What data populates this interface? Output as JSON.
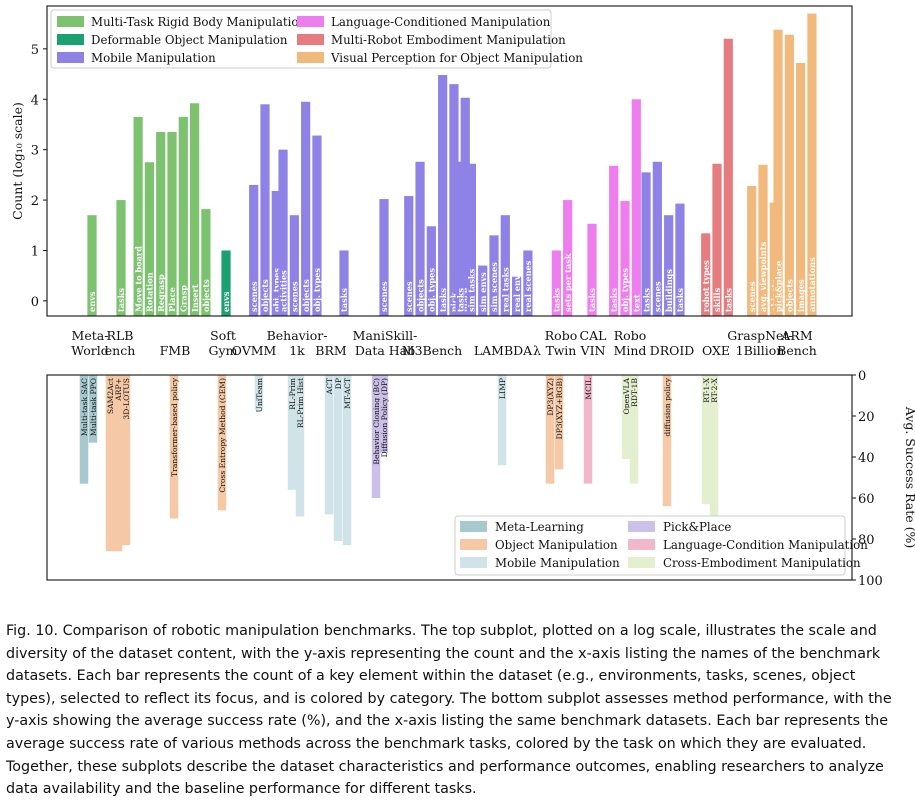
{
  "chart_data": [
    {
      "type": "bar",
      "ylabel": "Count (log₁₀ scale)",
      "ylim": [
        -0.3,
        5.85
      ],
      "yticks": [
        0,
        1,
        2,
        3,
        4,
        5
      ],
      "grid": false,
      "legend": {
        "placement": "top-center",
        "entries": [
          {
            "name": "Multi-Task Rigid Body Manipulation",
            "color": "#7cc26f"
          },
          {
            "name": "Language-Conditioned Manipulation",
            "color": "#ee7ded"
          },
          {
            "name": "Deformable Object Manipulation",
            "color": "#1aa16f"
          },
          {
            "name": "Multi-Robot Embodiment Manipulation",
            "color": "#e57d80"
          },
          {
            "name": "Mobile Manipulation",
            "color": "#8e82e6"
          },
          {
            "name": "Visual Perception for Object Manipulation",
            "color": "#f2b97c"
          }
        ]
      },
      "benchmarks": [
        {
          "name": "Meta-\nWorld",
          "color": "#7cc26f",
          "bars": [
            {
              "label": "envs",
              "value": 1.7
            }
          ]
        },
        {
          "name": "RLB\nench",
          "color": "#7cc26f",
          "bars": [
            {
              "label": "tasks",
              "value": 2.0
            }
          ]
        },
        {
          "name": "FMB",
          "color": "#7cc26f",
          "bars": [
            {
              "label": "Move to board",
              "value": 3.65
            },
            {
              "label": "Rotation",
              "value": 2.75
            },
            {
              "label": "Regrasp",
              "value": 3.35
            },
            {
              "label": "Place",
              "value": 3.35
            },
            {
              "label": "Grasp",
              "value": 3.65
            },
            {
              "label": "Insert",
              "value": 3.92
            },
            {
              "label": "objects",
              "value": 1.82
            }
          ]
        },
        {
          "name": "Soft\nGym",
          "color": "#1aa16f",
          "bars": [
            {
              "label": "envs",
              "value": 1.0
            }
          ]
        },
        {
          "name": "OVMM",
          "color": "#8e82e6",
          "bars": [
            {
              "label": "scenes",
              "value": 2.3
            },
            {
              "label": "objects",
              "value": 3.9
            },
            {
              "label": "obj. types",
              "value": 2.18
            }
          ]
        },
        {
          "name": "Behavior-\n1k",
          "color": "#8e82e6",
          "bars": [
            {
              "label": "activities",
              "value": 3.0
            },
            {
              "label": "scenes",
              "value": 1.7
            },
            {
              "label": "objects",
              "value": 3.95
            },
            {
              "label": "obj. types",
              "value": 3.28
            }
          ]
        },
        {
          "name": "BRM",
          "color": "#8e82e6",
          "bars": [
            {
              "label": "tasks",
              "value": 1.0
            }
          ]
        },
        {
          "name": "ManiSkill-\nData Hab",
          "color": "#8e82e6",
          "bars": [
            {
              "label": "scenes",
              "value": 2.02
            }
          ]
        },
        {
          "name": "M3Bench",
          "color": "#8e82e6",
          "bars": [
            {
              "label": "scenes",
              "value": 2.08
            },
            {
              "label": "objects",
              "value": 2.76
            },
            {
              "label": "obj. types",
              "value": 1.48
            },
            {
              "label": "tasks",
              "value": 4.48
            },
            {
              "label": "pick",
              "value": 4.3
            },
            {
              "label": "place",
              "value": 4.03
            }
          ]
        },
        {
          "name": "LAMBDA",
          "color": "#8e82e6",
          "bars": [
            {
              "label": "tasks",
              "value": 2.76
            },
            {
              "label": "sim tasks",
              "value": 2.72
            },
            {
              "label": "sim envs",
              "value": 0.7
            },
            {
              "label": "sim scenes",
              "value": 1.3
            },
            {
              "label": "real tasks",
              "value": 1.7
            },
            {
              "label": "real envs",
              "value": 0.48
            },
            {
              "label": "real scenes",
              "value": 1.0
            }
          ]
        },
        {
          "name": "λ",
          "color": "#8e82e6",
          "bars": []
        },
        {
          "name": "Robo\nTwin",
          "color": "#ee7ded",
          "bars": [
            {
              "label": "tasks",
              "value": 1.0
            },
            {
              "label": "sets per task",
              "value": 2.0
            }
          ]
        },
        {
          "name": "CAL\nVIN",
          "color": "#ee7ded",
          "bars": [
            {
              "label": "tasks",
              "value": 1.53
            }
          ]
        },
        {
          "name": "Robo\nMind",
          "color": "#ee7ded",
          "bars": [
            {
              "label": "tasks",
              "value": 2.68
            },
            {
              "label": "obj. types",
              "value": 1.98
            },
            {
              "label": "text",
              "value": 4.0
            }
          ]
        },
        {
          "name": "DROID",
          "color": "#8e82e6",
          "bars": [
            {
              "label": "tasks",
              "value": 2.55
            },
            {
              "label": "scenes",
              "value": 2.76
            },
            {
              "label": "buildings",
              "value": 1.7
            },
            {
              "label": "tasks",
              "value": 1.93
            }
          ]
        },
        {
          "name": "OXE",
          "color": "#e57d80",
          "bars": [
            {
              "label": "robot types",
              "value": 1.34
            },
            {
              "label": "skills",
              "value": 2.72
            },
            {
              "label": "tasks",
              "value": 5.2
            }
          ]
        },
        {
          "name": "GraspNet-\n1Billion",
          "color": "#f2b97c",
          "bars": [
            {
              "label": "scenes",
              "value": 2.28
            },
            {
              "label": "avg. viewpoints",
              "value": 2.7
            },
            {
              "label": "objects",
              "value": 1.95
            }
          ]
        },
        {
          "name": "ARM\nBench",
          "color": "#f2b97c",
          "bars": [
            {
              "label": "pick&place",
              "value": 5.38
            },
            {
              "label": "objects",
              "value": 5.28
            },
            {
              "label": "images",
              "value": 4.72
            },
            {
              "label": "annotations",
              "value": 5.7
            }
          ]
        }
      ]
    },
    {
      "type": "bar",
      "ylabel": "Avg. Success Rate (%)",
      "ylim": [
        0,
        100
      ],
      "yaxis_inverted": true,
      "yaxis_side": "right",
      "yticks": [
        0,
        20,
        40,
        60,
        80,
        100
      ],
      "grid": false,
      "legend": {
        "placement": "lower-right",
        "entries": [
          {
            "name": "Meta-Learning",
            "color": "#a7c8cd"
          },
          {
            "name": "Pick&Place",
            "color": "#cbc0e7"
          },
          {
            "name": "Object Manipulation",
            "color": "#f5c8a6"
          },
          {
            "name": "Language-Condition Manipulation",
            "color": "#f1b8cb"
          },
          {
            "name": "Mobile Manipulation",
            "color": "#cfe3e8"
          },
          {
            "name": "Cross-Embodiment Manipulation",
            "color": "#e3efcf"
          }
        ]
      },
      "bars": [
        {
          "label": "Multi-task SAC",
          "value": 53,
          "color": "#a7c8cd"
        },
        {
          "label": "Multi-task PPO",
          "value": 33,
          "color": "#a7c8cd"
        },
        {
          "label": "SAM2Act",
          "value": 86,
          "color": "#f5c8a6"
        },
        {
          "label": "ARP+",
          "value": 86,
          "color": "#f5c8a6"
        },
        {
          "label": "3D-LOTUS",
          "value": 83,
          "color": "#f5c8a6"
        },
        {
          "label": "Transformer-based policy",
          "value": 70,
          "color": "#f5c8a6"
        },
        {
          "label": "Cross Entropy Method (CEM)",
          "value": 66,
          "color": "#f5c8a6"
        },
        {
          "label": "UniTeam",
          "value": 17,
          "color": "#cfe3e8"
        },
        {
          "label": "RL-Prim",
          "value": 56,
          "color": "#cfe3e8"
        },
        {
          "label": "RL-Prim Hist",
          "value": 69,
          "color": "#cfe3e8"
        },
        {
          "label": "ACT",
          "value": 68,
          "color": "#cfe3e8"
        },
        {
          "label": "DP",
          "value": 81,
          "color": "#cfe3e8"
        },
        {
          "label": "MT-ACT",
          "value": 83,
          "color": "#cfe3e8"
        },
        {
          "label": "Behavior Cloning (BC)",
          "value": 60,
          "color": "#cbc0e7"
        },
        {
          "label": "Diffusion Policy (DP)",
          "value": 38,
          "color": "#cbc0e7"
        },
        {
          "label": "LIMP",
          "value": 44,
          "color": "#cfe3e8"
        },
        {
          "label": "DP3(XYZ)",
          "value": 53,
          "color": "#f5c8a6"
        },
        {
          "label": "DP3(XYZ+RGB)",
          "value": 46,
          "color": "#f5c8a6"
        },
        {
          "label": "MCIL",
          "value": 53,
          "color": "#f1b8cb"
        },
        {
          "label": "OpenVLA",
          "value": 41,
          "color": "#e3efcf"
        },
        {
          "label": "RDT-1B",
          "value": 53,
          "color": "#e3efcf"
        },
        {
          "label": "diffusion policy",
          "value": 64,
          "color": "#f5c8a6"
        },
        {
          "label": "RT-1-X",
          "value": 63,
          "color": "#e3efcf"
        },
        {
          "label": "RT-2-X",
          "value": 71,
          "color": "#e3efcf"
        }
      ]
    }
  ],
  "caption": "Fig. 10.  Comparison of robotic manipulation benchmarks. The top subplot, plotted on a log scale, illustrates the scale and diversity of the dataset content, with the y-axis representing the count and the x-axis listing the names of the benchmark datasets. Each bar represents the count of a key element within the dataset (e.g., environments, tasks, scenes, object types), selected to reflect its focus, and is colored by category. The bottom subplot assesses method performance, with the y-axis showing the average success rate (%), and the x-axis listing the same benchmark datasets. Each bar represents the average success rate of various methods across the benchmark tasks, colored by the task on which they are evaluated. Together, these subplots describe the dataset characteristics and performance outcomes, enabling researchers to analyze data availability and the baseline performance for different tasks."
}
